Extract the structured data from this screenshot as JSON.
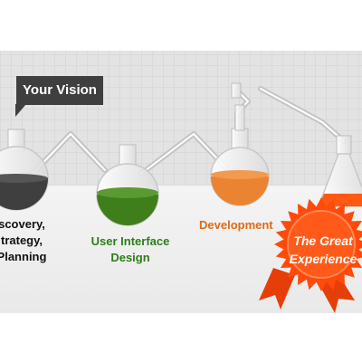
{
  "callout": {
    "text": "Your Vision"
  },
  "stages": [
    {
      "lines": [
        "scovery,",
        "trategy,",
        "Planning"
      ],
      "color": "#3f3f3f",
      "text_color": "#111111"
    },
    {
      "lines": [
        "User Interface",
        "Design"
      ],
      "color": "#3e7f1c",
      "text_color": "#2e7d1a"
    },
    {
      "lines": [
        "Development"
      ],
      "color": "#ea8432",
      "text_color": "#e06a10"
    }
  ],
  "badge": {
    "lines": [
      "The Great",
      "Experience"
    ],
    "color": "#ff4a0a"
  }
}
